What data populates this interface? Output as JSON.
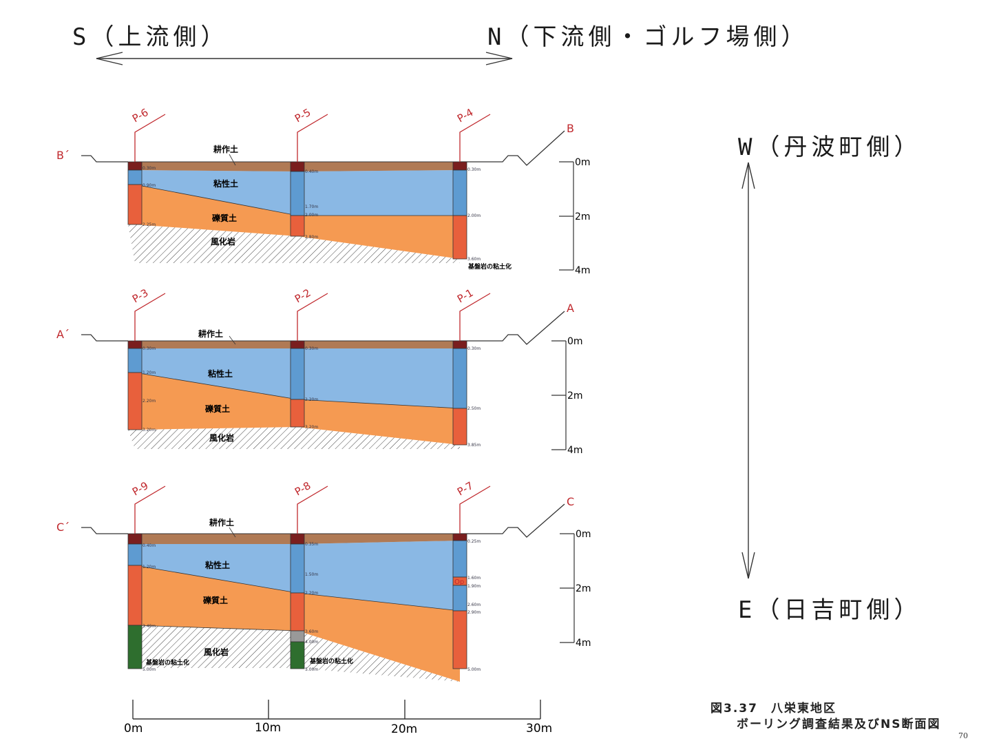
{
  "header": {
    "left": "S（上流側）",
    "right": "N（下流側・ゴルフ場側）"
  },
  "side": {
    "top": "W（丹波町側）",
    "bottom": "E（日吉町側）"
  },
  "sections": [
    {
      "left_label": "B´",
      "right_label": "B",
      "bores": [
        {
          "name": "P-6",
          "depths": [
            "0.30m",
            "0.90m",
            "2.25m"
          ]
        },
        {
          "name": "P-5",
          "depths": [
            "0.40m",
            "1.70m",
            "2.00m",
            "2.80m"
          ]
        },
        {
          "name": "P-4",
          "depths": [
            "0.30m",
            "2.00m",
            "3.60m"
          ]
        }
      ],
      "layers": [
        "耕作土",
        "粘性土",
        "礫質土",
        "風化岩"
      ],
      "note": "基盤岩の粘土化",
      "scale": [
        "0m",
        "2m",
        "4m"
      ]
    },
    {
      "left_label": "A´",
      "right_label": "A",
      "bores": [
        {
          "name": "P-3",
          "depths": [
            "0.30m",
            "1.20m",
            "2.20m",
            "3.20m"
          ]
        },
        {
          "name": "P-2",
          "depths": [
            "0.30m",
            "2.20m",
            "3.20m"
          ]
        },
        {
          "name": "P-1",
          "depths": [
            "0.30m",
            "2.50m",
            "3.85m"
          ]
        }
      ],
      "layers": [
        "耕作土",
        "粘性土",
        "礫質土",
        "風化岩"
      ],
      "scale": [
        "0m",
        "2m",
        "4m"
      ]
    },
    {
      "left_label": "C´",
      "right_label": "C",
      "bores": [
        {
          "name": "P-9",
          "depths": [
            "0.40m",
            "1.20m",
            "3.40m",
            "5.00m"
          ]
        },
        {
          "name": "P-8",
          "depths": [
            "0.35m",
            "1.50m",
            "2.20m",
            "3.60m",
            "4.00m",
            "5.00m"
          ]
        },
        {
          "name": "P-7",
          "depths": [
            "0.25m",
            "1.60m",
            "1.90m",
            "2.60m",
            "2.90m",
            "5.00m"
          ]
        }
      ],
      "layers": [
        "耕作土",
        "粘性土",
        "礫質土",
        "風化岩"
      ],
      "note": "基盤岩の粘土化",
      "op_label": "Op",
      "scale": [
        "0m",
        "2m",
        "4m"
      ]
    }
  ],
  "horizontal_scale": [
    "0m",
    "10m",
    "20m",
    "30m"
  ],
  "caption": {
    "line1": "図3.37　八栄東地区",
    "line2": "ボーリング調査結果及びNS断面図"
  },
  "page_number": "70",
  "colors": {
    "topsoil": "#b07a55",
    "clay": "#8ab8e4",
    "gravel": "#f59a52",
    "bore_top": "#7a1e1e",
    "gravel_core": "#e8603c",
    "green_core": "#2e6e2e",
    "marker": "#c0282d"
  }
}
